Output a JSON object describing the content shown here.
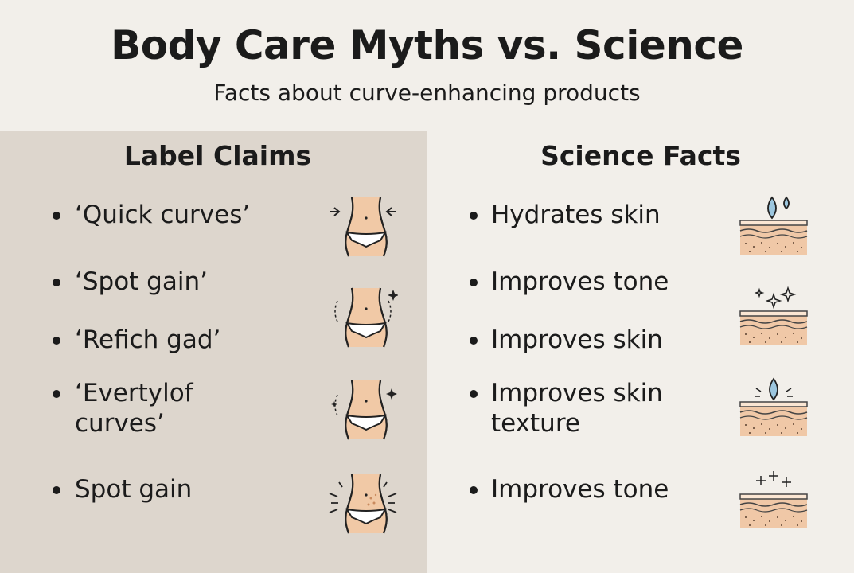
{
  "header": {
    "title": "Body Care Myths vs. Science",
    "subtitle": "Facts about curve-enhancing products"
  },
  "columns": [
    {
      "heading": "Label Claims",
      "items": [
        "‘Quick curves’",
        "‘Spot gain’",
        "‘Refich gad’",
        "‘Evertylof curves’",
        "Spot gain"
      ]
    },
    {
      "heading": "Science Facts",
      "items": [
        "Hydrates skin",
        "Improves tone",
        "Improves skin",
        "Improves skin texture",
        "Improves tone"
      ]
    }
  ]
}
